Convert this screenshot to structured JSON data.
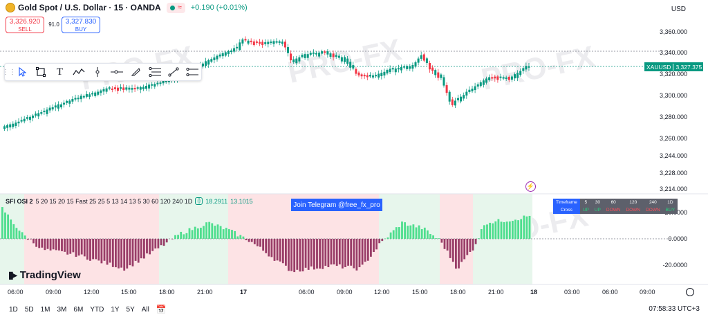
{
  "header": {
    "title": "Gold Spot / U.S. Dollar · 15 · OANDA",
    "wave": "≈",
    "change": "+0.190 (+0.01%)",
    "currency": "USD"
  },
  "trade": {
    "sell_price": "3,326.920",
    "sell_label": "SELL",
    "spread": "91.0",
    "buy_price": "3,327.830",
    "buy_label": "BUY"
  },
  "price_axis": {
    "labels": [
      "3,360.000",
      "3,340.000",
      "3,320.000",
      "3,300.000",
      "3,280.000",
      "3,260.000",
      "3,244.000",
      "3,228.000",
      "3,214.000"
    ],
    "symbol_tag": "XAUUSD",
    "last_price": "3,327.375"
  },
  "oscillator": {
    "name": "SFI OSI 2",
    "params": "5 20 15 20 15 Fast 25 25 5 13 14 13 5 30 60 120 240 1D",
    "value1": "18.2911",
    "value2": "13.1015",
    "axis_labels": [
      "20.0000",
      "0.0000",
      "-20.0000"
    ]
  },
  "telegram_banner": "Join Telegram @free_fx_pro",
  "tf_table": {
    "header": [
      "Timeframe",
      "5",
      "30",
      "60",
      "120",
      "240",
      "1D"
    ],
    "row_label": "Cross",
    "row": [
      {
        "text": "UP",
        "state": "up"
      },
      {
        "text": "UP",
        "state": "up"
      },
      {
        "text": "DOWN",
        "state": "dn"
      },
      {
        "text": "DOWN",
        "state": "dn"
      },
      {
        "text": "DOWN",
        "state": "dn"
      },
      {
        "text": "BUY",
        "state": "up"
      }
    ]
  },
  "time_axis": [
    "06:00",
    "09:00",
    "12:00",
    "15:00",
    "18:00",
    "21:00",
    "17",
    "06:00",
    "09:00",
    "12:00",
    "15:00",
    "18:00",
    "21:00",
    "18",
    "03:00",
    "06:00",
    "09:00"
  ],
  "brand": "TradingView",
  "watermark": "PRO-FX",
  "ranges": [
    "1D",
    "5D",
    "1M",
    "3M",
    "6M",
    "YTD",
    "1Y",
    "5Y",
    "All"
  ],
  "clock": "07:58:33 UTC+3",
  "colors": {
    "up": "#089981",
    "down": "#f23645",
    "accent": "#2962ff",
    "osc_up": "#3ddc84",
    "osc_down": "#8e2a5a"
  },
  "tools": [
    "cursor-icon",
    "rectangle-icon",
    "text-icon",
    "path-icon",
    "vertical-line-icon",
    "horizontal-ray-icon",
    "brush-icon",
    "fib-icon",
    "line-icon",
    "parallel-channel-icon"
  ]
}
